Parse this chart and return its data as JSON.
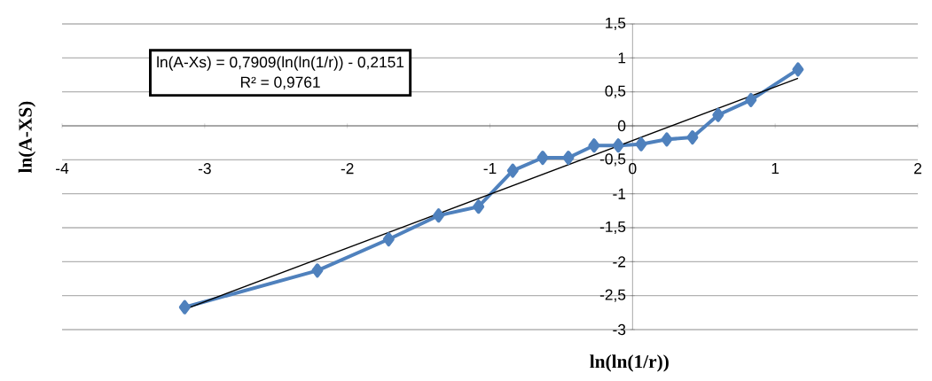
{
  "chart_data": {
    "type": "line",
    "xlabel": "ln(ln(1/r))",
    "ylabel": "ln(A-XS)",
    "xlim": [
      -4,
      2
    ],
    "ylim": [
      -3,
      1.5
    ],
    "xticks": [
      -4,
      -3,
      -2,
      -1,
      0,
      1,
      2
    ],
    "yticks": [
      -3,
      {
        "value": -2.5,
        "label": "-2,5"
      },
      -2,
      {
        "value": -1.5,
        "label": "-1,5"
      },
      -1,
      {
        "value": -0.5,
        "label": "-0,5"
      },
      0,
      {
        "value": 0.5,
        "label": "0,5"
      },
      1,
      {
        "value": 1.5,
        "label": "1,5"
      }
    ],
    "grid": "y",
    "marker": "diamond",
    "line_style": "solid",
    "annotations": [
      "ln(A-Xs) = 0,7909(ln(ln(1/r)) - 0,2151",
      "R² = 0,9761"
    ],
    "series": [
      {
        "color": "#4f81bd",
        "x": [
          -3.14,
          -2.21,
          -1.71,
          -1.36,
          -1.08,
          -0.84,
          -0.63,
          -0.45,
          -0.27,
          -0.1,
          0.06,
          0.24,
          0.42,
          0.6,
          0.83,
          1.16
        ],
        "values": [
          -2.67,
          -2.13,
          -1.67,
          -1.32,
          -1.19,
          -0.66,
          -0.47,
          -0.47,
          -0.29,
          -0.29,
          -0.27,
          -0.2,
          -0.17,
          0.16,
          0.38,
          0.83
        ]
      },
      {
        "color": "#000000",
        "marker": "none",
        "x": [
          -3.14,
          1.16
        ],
        "values": [
          -2.7,
          0.7
        ]
      }
    ]
  }
}
